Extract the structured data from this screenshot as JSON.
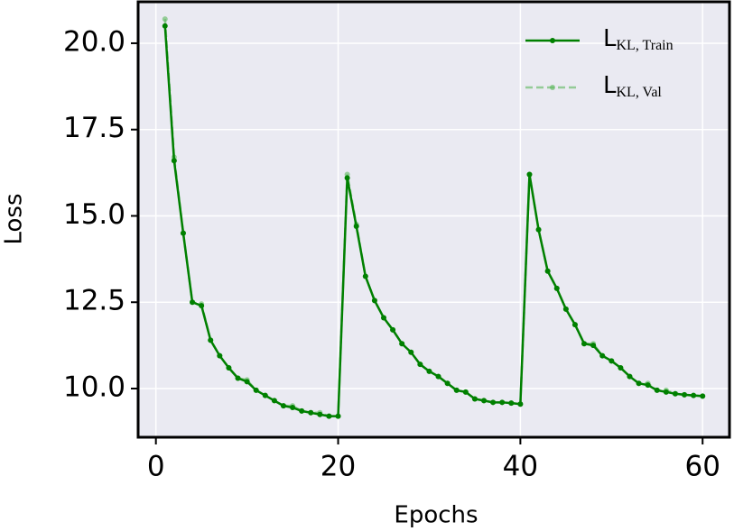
{
  "chart_data": {
    "type": "line",
    "xlabel": "Epochs",
    "ylabel": "Loss",
    "x": [
      1,
      2,
      3,
      4,
      5,
      6,
      7,
      8,
      9,
      10,
      11,
      12,
      13,
      14,
      15,
      16,
      17,
      18,
      19,
      20,
      21,
      22,
      23,
      24,
      25,
      26,
      27,
      28,
      29,
      30,
      31,
      32,
      33,
      34,
      35,
      36,
      37,
      38,
      39,
      40,
      41,
      42,
      43,
      44,
      45,
      46,
      47,
      48,
      49,
      50,
      51,
      52,
      53,
      54,
      55,
      56,
      57,
      58,
      59,
      60
    ],
    "series": [
      {
        "name": "L",
        "name_sub": "KL, Train",
        "color": "#008000",
        "dashed": false,
        "values": [
          20.5,
          16.6,
          14.5,
          12.5,
          12.4,
          11.4,
          10.95,
          10.6,
          10.3,
          10.2,
          9.95,
          9.8,
          9.65,
          9.5,
          9.45,
          9.35,
          9.3,
          9.25,
          9.2,
          9.2,
          16.1,
          14.7,
          13.25,
          12.55,
          12.05,
          11.7,
          11.3,
          11.05,
          10.7,
          10.5,
          10.35,
          10.15,
          9.95,
          9.9,
          9.7,
          9.65,
          9.6,
          9.6,
          9.58,
          9.55,
          16.2,
          14.6,
          13.4,
          12.9,
          12.3,
          11.85,
          11.3,
          11.25,
          10.95,
          10.8,
          10.6,
          10.35,
          10.15,
          10.1,
          9.95,
          9.9,
          9.85,
          9.82,
          9.8,
          9.78
        ]
      },
      {
        "name": "L",
        "name_sub": "KL, Val",
        "color": "#5cb85c",
        "dashed": true,
        "values": [
          20.7,
          16.7,
          14.5,
          12.5,
          12.45,
          11.4,
          10.95,
          10.6,
          10.3,
          10.25,
          9.95,
          9.8,
          9.65,
          9.5,
          9.5,
          9.35,
          9.3,
          9.3,
          9.2,
          9.2,
          16.2,
          14.75,
          13.25,
          12.55,
          12.05,
          11.7,
          11.3,
          11.05,
          10.7,
          10.5,
          10.35,
          10.15,
          9.95,
          9.9,
          9.7,
          9.65,
          9.6,
          9.6,
          9.58,
          9.55,
          16.2,
          14.6,
          13.4,
          12.9,
          12.3,
          11.85,
          11.3,
          11.3,
          10.95,
          10.8,
          10.6,
          10.35,
          10.15,
          10.15,
          9.95,
          9.95,
          9.85,
          9.82,
          9.8,
          9.78
        ]
      }
    ],
    "xlim": [
      -1.95,
      62.95
    ],
    "ylim": [
      8.59,
      21.2
    ],
    "xticks": [
      0,
      20,
      40,
      60
    ],
    "yticks": [
      {
        "value": 10,
        "label": "10.0"
      },
      12.5,
      {
        "value": 15,
        "label": "15.0"
      },
      17.5,
      {
        "value": 20,
        "label": "20.0"
      }
    ],
    "grid": true,
    "legend": "upper right"
  }
}
